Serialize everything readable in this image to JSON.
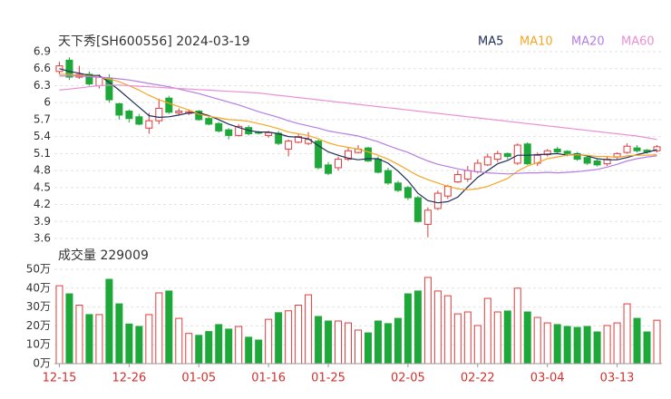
{
  "chart_data": [
    {
      "type": "candlestick",
      "title": "天下秀[SH600556] 2024-03-19",
      "open": [
        6.55,
        6.75,
        6.45,
        6.5,
        6.3,
        6.42,
        5.98,
        5.85,
        5.75,
        5.55,
        5.68,
        6.08,
        5.82,
        5.81,
        5.85,
        5.72,
        5.63,
        5.52,
        5.42,
        5.56,
        5.48,
        5.42,
        5.46,
        5.18,
        5.3,
        5.28,
        5.32,
        4.9,
        4.85,
        5.0,
        5.12,
        5.2,
        5.0,
        4.8,
        4.58,
        4.5,
        4.32,
        3.85,
        4.13,
        4.35,
        4.6,
        4.65,
        4.78,
        4.9,
        5.0,
        5.1,
        4.93,
        5.27,
        4.93,
        5.08,
        5.18,
        5.14,
        5.1,
        5.03,
        4.97,
        4.92,
        5.04,
        5.12,
        5.2,
        5.16,
        5.15
      ],
      "high": [
        6.72,
        6.8,
        6.65,
        6.55,
        6.5,
        6.5,
        6.0,
        5.88,
        5.8,
        5.82,
        6.07,
        6.12,
        5.9,
        5.88,
        5.87,
        5.75,
        5.66,
        5.55,
        5.62,
        5.6,
        5.5,
        5.5,
        5.5,
        5.35,
        5.45,
        5.48,
        5.35,
        4.95,
        5.05,
        5.2,
        5.25,
        5.22,
        5.05,
        4.85,
        4.62,
        4.53,
        4.35,
        4.15,
        4.45,
        4.55,
        4.8,
        4.88,
        5.0,
        5.1,
        5.15,
        5.12,
        5.28,
        5.3,
        5.12,
        5.18,
        5.22,
        5.16,
        5.13,
        5.06,
        5.0,
        5.05,
        5.12,
        5.28,
        5.25,
        5.18,
        5.25
      ],
      "low": [
        6.5,
        6.4,
        6.42,
        6.3,
        6.25,
        6.0,
        5.7,
        5.65,
        5.6,
        5.45,
        5.62,
        5.8,
        5.78,
        5.78,
        5.68,
        5.6,
        5.47,
        5.35,
        5.4,
        5.42,
        5.44,
        5.38,
        5.25,
        5.05,
        5.28,
        5.25,
        4.82,
        4.72,
        4.8,
        4.97,
        5.1,
        4.95,
        4.75,
        4.55,
        4.42,
        4.28,
        3.88,
        3.62,
        4.1,
        4.3,
        4.58,
        4.6,
        4.75,
        4.88,
        4.95,
        5.0,
        4.9,
        4.9,
        4.88,
        5.05,
        5.1,
        5.05,
        4.97,
        4.9,
        4.87,
        4.88,
        5.0,
        5.1,
        5.12,
        5.1,
        5.12
      ],
      "close": [
        6.65,
        6.45,
        6.5,
        6.33,
        6.45,
        6.05,
        5.78,
        5.72,
        5.62,
        5.68,
        5.9,
        5.83,
        5.85,
        5.84,
        5.7,
        5.62,
        5.5,
        5.42,
        5.58,
        5.45,
        5.46,
        5.47,
        5.28,
        5.32,
        5.4,
        5.35,
        4.85,
        4.75,
        5.0,
        5.15,
        5.18,
        4.97,
        4.77,
        4.58,
        4.45,
        4.32,
        3.9,
        4.1,
        4.4,
        4.52,
        4.73,
        4.8,
        4.93,
        5.04,
        5.1,
        5.05,
        5.25,
        4.92,
        5.07,
        5.15,
        5.13,
        5.1,
        5.0,
        4.93,
        4.9,
        5.0,
        5.1,
        5.23,
        5.15,
        5.13,
        5.22
      ],
      "up_color": "#e23b3b",
      "down_color": "#1fa83a",
      "series": [
        {
          "name": "MA5",
          "color": "#1f2d5a",
          "values": [
            6.6,
            6.55,
            6.52,
            6.48,
            6.48,
            6.36,
            6.22,
            6.07,
            5.92,
            5.77,
            5.74,
            5.75,
            5.78,
            5.82,
            5.82,
            5.77,
            5.7,
            5.62,
            5.56,
            5.51,
            5.48,
            5.48,
            5.45,
            5.4,
            5.39,
            5.36,
            5.24,
            5.13,
            5.07,
            5.02,
            4.99,
            5.01,
            5.01,
            4.93,
            4.79,
            4.62,
            4.4,
            4.27,
            4.23,
            4.25,
            4.33,
            4.51,
            4.68,
            4.8,
            4.92,
            4.98,
            5.07,
            5.07,
            5.08,
            5.09,
            5.1,
            5.07,
            5.09,
            5.06,
            5.01,
            4.99,
            4.99,
            5.03,
            5.08,
            5.12,
            5.17
          ]
        },
        {
          "name": "MA10",
          "color": "#f5a623",
          "values": [
            6.5,
            6.5,
            6.48,
            6.47,
            6.45,
            6.42,
            6.37,
            6.3,
            6.22,
            6.13,
            6.05,
            5.99,
            5.93,
            5.87,
            5.8,
            5.76,
            5.73,
            5.7,
            5.69,
            5.67,
            5.63,
            5.59,
            5.54,
            5.48,
            5.45,
            5.42,
            5.36,
            5.29,
            5.24,
            5.21,
            5.18,
            5.13,
            5.07,
            5.0,
            4.91,
            4.81,
            4.71,
            4.64,
            4.58,
            4.52,
            4.48,
            4.46,
            4.48,
            4.52,
            4.59,
            4.66,
            4.79,
            4.88,
            4.94,
            5.01,
            5.04,
            5.07,
            5.08,
            5.07,
            5.05,
            5.05,
            5.03,
            5.06,
            5.07,
            5.07,
            5.08
          ]
        },
        {
          "name": "MA20",
          "color": "#b57ee3",
          "values": [
            6.47,
            6.47,
            6.47,
            6.46,
            6.45,
            6.44,
            6.42,
            6.4,
            6.37,
            6.34,
            6.31,
            6.28,
            6.24,
            6.2,
            6.16,
            6.11,
            6.06,
            6.01,
            5.96,
            5.9,
            5.84,
            5.79,
            5.74,
            5.68,
            5.63,
            5.59,
            5.55,
            5.5,
            5.47,
            5.44,
            5.41,
            5.36,
            5.31,
            5.24,
            5.18,
            5.12,
            5.04,
            4.97,
            4.91,
            4.87,
            4.83,
            4.8,
            4.78,
            4.76,
            4.75,
            4.74,
            4.75,
            4.76,
            4.76,
            4.77,
            4.76,
            4.77,
            4.78,
            4.8,
            4.82,
            4.86,
            4.91,
            4.97,
            5.01,
            5.04,
            5.06
          ]
        },
        {
          "name": "MA60",
          "color": "#ec8fd6",
          "values": [
            6.22,
            6.24,
            6.26,
            6.28,
            6.3,
            6.31,
            6.31,
            6.3,
            6.29,
            6.28,
            6.27,
            6.26,
            6.25,
            6.24,
            6.23,
            6.22,
            6.21,
            6.2,
            6.19,
            6.18,
            6.17,
            6.15,
            6.13,
            6.11,
            6.09,
            6.07,
            6.05,
            6.03,
            6.01,
            5.99,
            5.97,
            5.95,
            5.93,
            5.91,
            5.89,
            5.87,
            5.85,
            5.83,
            5.81,
            5.79,
            5.77,
            5.75,
            5.73,
            5.71,
            5.69,
            5.67,
            5.65,
            5.63,
            5.61,
            5.59,
            5.57,
            5.55,
            5.53,
            5.51,
            5.49,
            5.47,
            5.45,
            5.43,
            5.41,
            5.38,
            5.35
          ]
        }
      ],
      "ylim": [
        3.6,
        6.9
      ],
      "yticks": [
        3.6,
        3.9,
        4.2,
        4.5,
        4.8,
        5.1,
        5.4,
        5.7,
        6,
        6.3,
        6.6,
        6.9
      ],
      "grid": true,
      "legend": "top-right"
    },
    {
      "type": "bar",
      "title": "成交量 229009",
      "categories": [
        "12-15",
        null,
        null,
        null,
        null,
        null,
        null,
        "12-26",
        null,
        null,
        null,
        null,
        null,
        null,
        "01-05",
        null,
        null,
        null,
        null,
        null,
        null,
        "01-16",
        null,
        null,
        null,
        null,
        null,
        "01-25",
        null,
        null,
        null,
        null,
        null,
        null,
        null,
        "02-05",
        null,
        null,
        null,
        null,
        null,
        null,
        "02-22",
        null,
        null,
        null,
        null,
        null,
        null,
        "03-04",
        null,
        null,
        null,
        null,
        null,
        null,
        "03-13",
        null,
        null,
        null,
        null
      ],
      "values": [
        41.3,
        37,
        31,
        26,
        26,
        44.7,
        31.7,
        21,
        19.7,
        26,
        37.5,
        38.5,
        24,
        16,
        15,
        17,
        20.7,
        18.3,
        19.7,
        14,
        12.5,
        23.5,
        27,
        28,
        31,
        36.5,
        25,
        22.6,
        22.6,
        21.6,
        17.8,
        16.3,
        22.6,
        21.2,
        24,
        37,
        38.5,
        45.7,
        38.5,
        36,
        26.4,
        27.4,
        20.2,
        34.6,
        27.4,
        27.9,
        40,
        27.4,
        24.5,
        21.6,
        20.7,
        19.7,
        19.2,
        19.7,
        16.8,
        20.2,
        21.6,
        31.7,
        24,
        16.8,
        23
      ],
      "ylim": [
        0,
        50
      ],
      "yticks": [
        {
          "value": 0,
          "label": "0万"
        },
        {
          "value": 10,
          "label": "10万"
        },
        {
          "value": 20,
          "label": "20万"
        },
        {
          "value": 30,
          "label": "30万"
        },
        {
          "value": 40,
          "label": "40万"
        },
        {
          "value": 50,
          "label": "50万"
        }
      ],
      "grid": true
    }
  ]
}
